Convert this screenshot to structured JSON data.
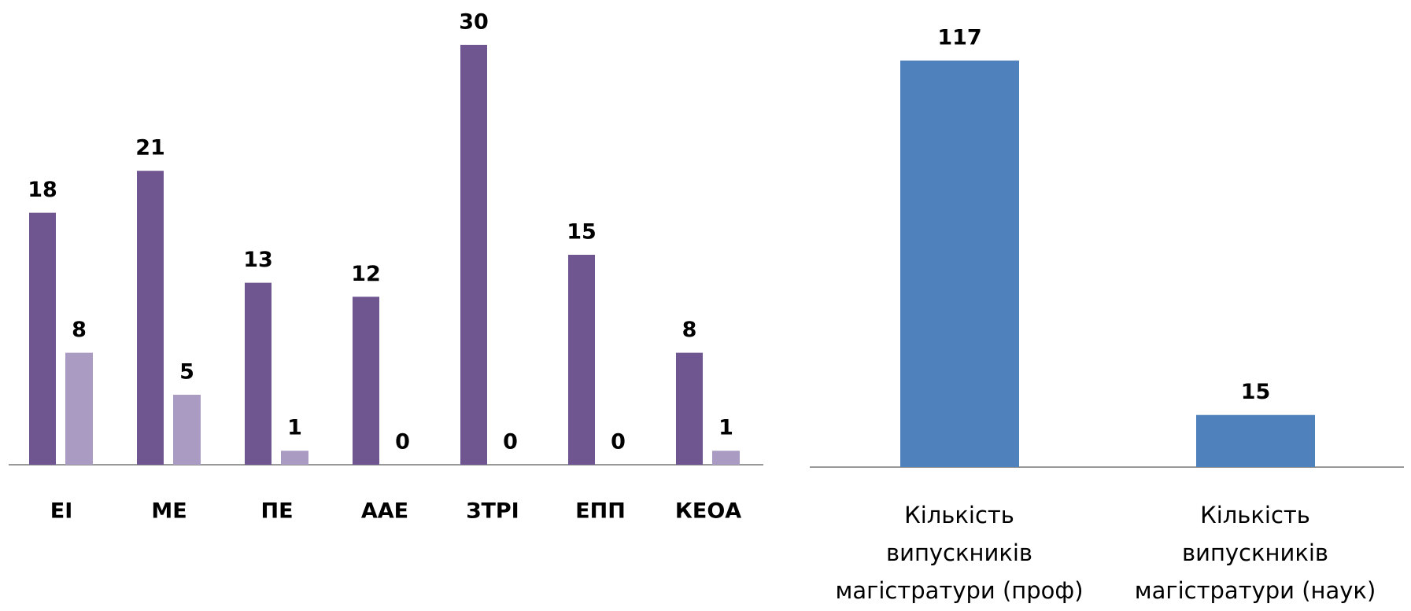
{
  "chart_data": [
    {
      "type": "bar",
      "categories": [
        "ЕІ",
        "МЕ",
        "ПЕ",
        "ААЕ",
        "ЗТРІ",
        "ЕПП",
        "КЕОА"
      ],
      "series": [
        {
          "color": "#6f5690",
          "values": [
            18,
            21,
            13,
            12,
            30,
            15,
            8
          ]
        },
        {
          "color": "#a99bc2",
          "values": [
            8,
            5,
            1,
            0,
            0,
            0,
            1
          ]
        }
      ],
      "ylim": [
        0,
        30
      ]
    },
    {
      "type": "bar",
      "categories": [
        "Кількість\nвипускників\nмагістратури (проф)",
        "Кількість\nвипускників\nмагістратури (наук)"
      ],
      "values": [
        117,
        15
      ],
      "color": "#4f81bd",
      "ylim": [
        0,
        117
      ]
    }
  ]
}
